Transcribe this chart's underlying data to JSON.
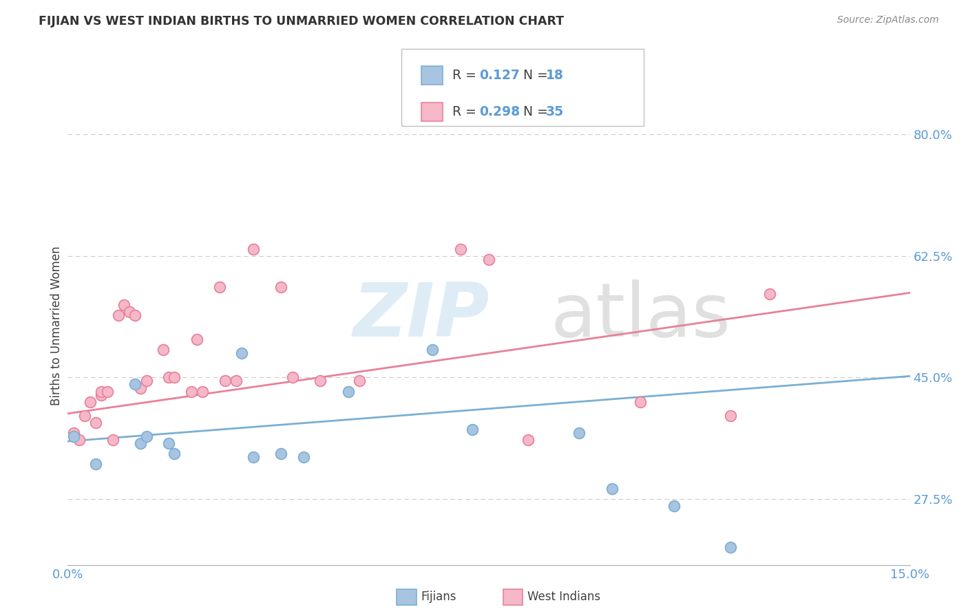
{
  "title": "FIJIAN VS WEST INDIAN BIRTHS TO UNMARRIED WOMEN CORRELATION CHART",
  "source": "Source: ZipAtlas.com",
  "ylabel": "Births to Unmarried Women",
  "ytick_labels": [
    "27.5%",
    "45.0%",
    "62.5%",
    "80.0%"
  ],
  "ytick_values": [
    0.275,
    0.45,
    0.625,
    0.8
  ],
  "xlim": [
    0.0,
    0.15
  ],
  "ylim": [
    0.18,
    0.87
  ],
  "fijian_color": "#a8c4e0",
  "fijian_edge_color": "#7bafd4",
  "west_indian_color": "#f4b8c8",
  "west_indian_edge_color": "#e8809a",
  "fijian_line_color": "#7bafd4",
  "west_indian_line_color": "#e8809a",
  "fijian_R": 0.127,
  "fijian_N": 18,
  "west_indian_R": 0.298,
  "west_indian_N": 35,
  "background_color": "#ffffff",
  "grid_color": "#cccccc",
  "label_color_blue": "#5b9bd5",
  "label_color_dark": "#404040",
  "fijian_x": [
    0.001,
    0.005,
    0.012,
    0.013,
    0.014,
    0.018,
    0.019,
    0.031,
    0.033,
    0.038,
    0.042,
    0.05,
    0.065,
    0.072,
    0.091,
    0.097,
    0.108,
    0.118
  ],
  "fijian_y": [
    0.365,
    0.325,
    0.44,
    0.355,
    0.365,
    0.355,
    0.34,
    0.485,
    0.335,
    0.34,
    0.335,
    0.43,
    0.49,
    0.375,
    0.37,
    0.29,
    0.265,
    0.205
  ],
  "west_indian_x": [
    0.001,
    0.002,
    0.003,
    0.004,
    0.005,
    0.006,
    0.006,
    0.007,
    0.008,
    0.009,
    0.01,
    0.011,
    0.012,
    0.013,
    0.014,
    0.017,
    0.018,
    0.019,
    0.022,
    0.023,
    0.024,
    0.027,
    0.028,
    0.03,
    0.033,
    0.038,
    0.04,
    0.045,
    0.052,
    0.07,
    0.075,
    0.082,
    0.102,
    0.118,
    0.125
  ],
  "west_indian_y": [
    0.37,
    0.36,
    0.395,
    0.415,
    0.385,
    0.425,
    0.43,
    0.43,
    0.36,
    0.54,
    0.555,
    0.545,
    0.54,
    0.435,
    0.445,
    0.49,
    0.45,
    0.45,
    0.43,
    0.505,
    0.43,
    0.58,
    0.445,
    0.445,
    0.635,
    0.58,
    0.45,
    0.445,
    0.445,
    0.635,
    0.62,
    0.36,
    0.415,
    0.395,
    0.57
  ],
  "fijian_trend_x0": 0.0,
  "fijian_trend_x1": 0.15,
  "fijian_trend_y0": 0.358,
  "fijian_trend_y1": 0.452,
  "west_indian_trend_x0": 0.0,
  "west_indian_trend_x1": 0.15,
  "west_indian_trend_y0": 0.398,
  "west_indian_trend_y1": 0.572
}
